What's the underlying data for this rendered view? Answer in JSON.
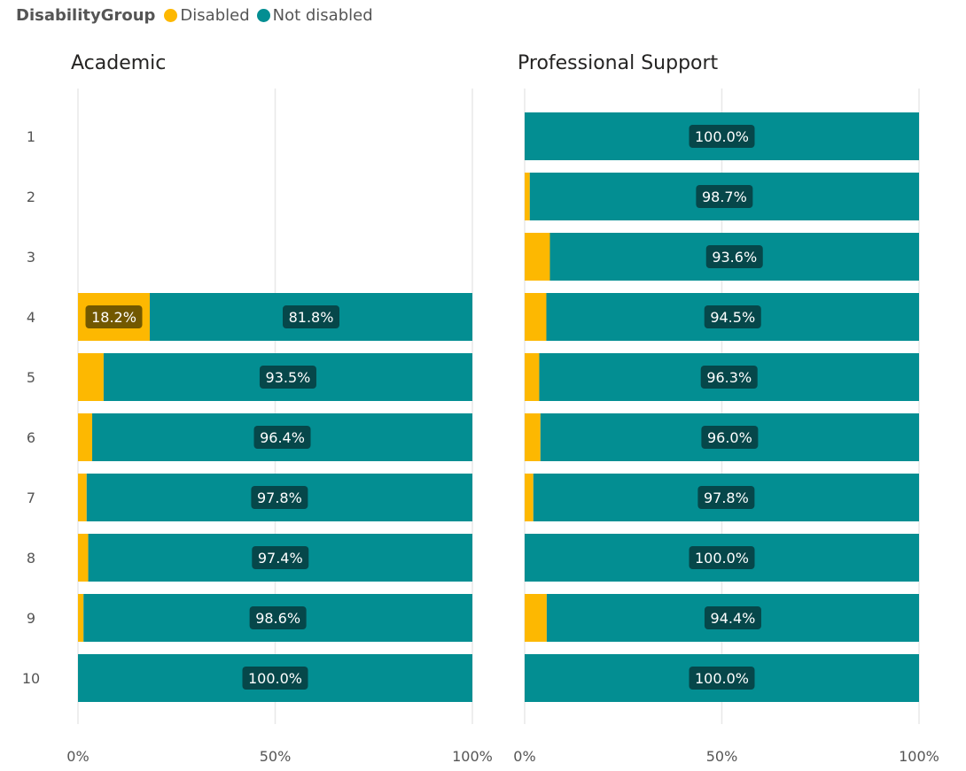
{
  "legend": {
    "title": "DisabilityGroup",
    "items": [
      {
        "label": "Disabled",
        "color": "#FDB801"
      },
      {
        "label": "Not disabled",
        "color": "#038E92"
      }
    ]
  },
  "chart_data": [
    {
      "type": "bar",
      "orientation": "horizontal",
      "stacked": "100%",
      "title": "Academic",
      "categories": [
        "1",
        "2",
        "3",
        "4",
        "5",
        "6",
        "7",
        "8",
        "9",
        "10"
      ],
      "xlim": [
        0,
        100
      ],
      "x_ticks": [
        "0%",
        "50%",
        "100%"
      ],
      "grid": true,
      "series": [
        {
          "name": "Disabled",
          "values": [
            null,
            null,
            null,
            18.2,
            6.5,
            3.6,
            2.2,
            2.6,
            1.4,
            0
          ]
        },
        {
          "name": "Not disabled",
          "values": [
            null,
            null,
            null,
            81.8,
            93.5,
            96.4,
            97.8,
            97.4,
            98.6,
            100.0
          ]
        }
      ]
    },
    {
      "type": "bar",
      "orientation": "horizontal",
      "stacked": "100%",
      "title": "Professional Support",
      "categories": [
        "1",
        "2",
        "3",
        "4",
        "5",
        "6",
        "7",
        "8",
        "9",
        "10"
      ],
      "xlim": [
        0,
        100
      ],
      "x_ticks": [
        "0%",
        "50%",
        "100%"
      ],
      "grid": true,
      "series": [
        {
          "name": "Disabled",
          "values": [
            0,
            1.3,
            6.4,
            5.5,
            3.7,
            4.0,
            2.2,
            0,
            5.6,
            0
          ]
        },
        {
          "name": "Not disabled",
          "values": [
            100.0,
            98.7,
            93.6,
            94.5,
            96.3,
            96.0,
            97.8,
            100.0,
            94.4,
            100.0
          ]
        }
      ]
    }
  ]
}
